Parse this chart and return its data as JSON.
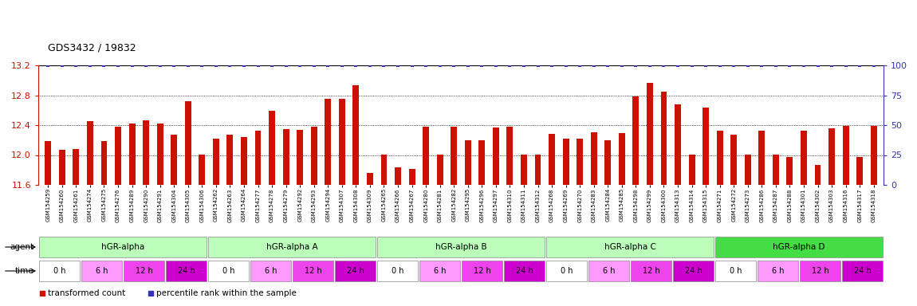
{
  "title": "GDS3432 / 19832",
  "sample_labels": [
    "GSM154259",
    "GSM154260",
    "GSM154261",
    "GSM154274",
    "GSM154275",
    "GSM154276",
    "GSM154289",
    "GSM154290",
    "GSM154291",
    "GSM154304",
    "GSM154305",
    "GSM154306",
    "GSM154262",
    "GSM154263",
    "GSM154264",
    "GSM154277",
    "GSM154278",
    "GSM154279",
    "GSM154292",
    "GSM154293",
    "GSM154294",
    "GSM154307",
    "GSM154308",
    "GSM154309",
    "GSM154265",
    "GSM154266",
    "GSM154267",
    "GSM154280",
    "GSM154281",
    "GSM154282",
    "GSM154295",
    "GSM154296",
    "GSM154297",
    "GSM154310",
    "GSM154311",
    "GSM154312",
    "GSM154268",
    "GSM154269",
    "GSM154270",
    "GSM154283",
    "GSM154284",
    "GSM154285",
    "GSM154298",
    "GSM154299",
    "GSM154300",
    "GSM154313",
    "GSM154314",
    "GSM154315",
    "GSM154271",
    "GSM154272",
    "GSM154273",
    "GSM154286",
    "GSM154287",
    "GSM154288",
    "GSM154301",
    "GSM154302",
    "GSM154303",
    "GSM154316",
    "GSM154317",
    "GSM154318"
  ],
  "bar_values": [
    12.19,
    12.07,
    12.08,
    12.45,
    12.19,
    12.38,
    12.42,
    12.46,
    12.42,
    12.27,
    12.72,
    12.0,
    12.22,
    12.27,
    12.24,
    12.33,
    12.59,
    12.35,
    12.34,
    12.38,
    12.75,
    12.75,
    12.93,
    11.76,
    12.0,
    11.83,
    11.81,
    12.38,
    12.0,
    12.38,
    12.2,
    12.2,
    12.37,
    12.38,
    12.0,
    12.0,
    12.28,
    12.22,
    12.22,
    12.3,
    12.2,
    12.29,
    12.78,
    12.97,
    12.85,
    12.68,
    12.0,
    12.63,
    12.32,
    12.27,
    12.0,
    12.33,
    12.0,
    11.97,
    12.33,
    11.87,
    12.36,
    12.39,
    11.97,
    12.39
  ],
  "percentile_values": [
    100,
    100,
    100,
    100,
    100,
    100,
    100,
    100,
    100,
    100,
    100,
    100,
    100,
    100,
    100,
    100,
    100,
    100,
    100,
    100,
    100,
    100,
    100,
    100,
    100,
    100,
    100,
    100,
    100,
    100,
    100,
    100,
    100,
    100,
    100,
    100,
    100,
    100,
    100,
    100,
    100,
    100,
    100,
    100,
    100,
    100,
    100,
    100,
    100,
    100,
    100,
    100,
    100,
    100,
    100,
    100,
    100,
    100,
    100,
    100
  ],
  "ymin": 11.6,
  "ymax": 13.2,
  "yticks_left": [
    11.6,
    12.0,
    12.4,
    12.8,
    13.2
  ],
  "yticks_right": [
    0,
    25,
    50,
    75,
    100
  ],
  "bar_color": "#CC1100",
  "dot_color": "#3333BB",
  "agent_groups": [
    {
      "label": "hGR-alpha",
      "n": 12,
      "color": "#BBFFBB"
    },
    {
      "label": "hGR-alpha A",
      "n": 12,
      "color": "#BBFFBB"
    },
    {
      "label": "hGR-alpha B",
      "n": 12,
      "color": "#BBFFBB"
    },
    {
      "label": "hGR-alpha C",
      "n": 12,
      "color": "#BBFFBB"
    },
    {
      "label": "hGR-alpha D",
      "n": 12,
      "color": "#44DD44"
    }
  ],
  "time_labels": [
    "0 h",
    "6 h",
    "12 h",
    "24 h"
  ],
  "time_colors": [
    "#FFFFFF",
    "#FF99FF",
    "#EE44EE",
    "#CC00CC"
  ],
  "legend_bar_label": "transformed count",
  "legend_dot_label": "percentile rank within the sample",
  "bar_color_legend": "#CC1100",
  "dot_color_legend": "#3333BB"
}
